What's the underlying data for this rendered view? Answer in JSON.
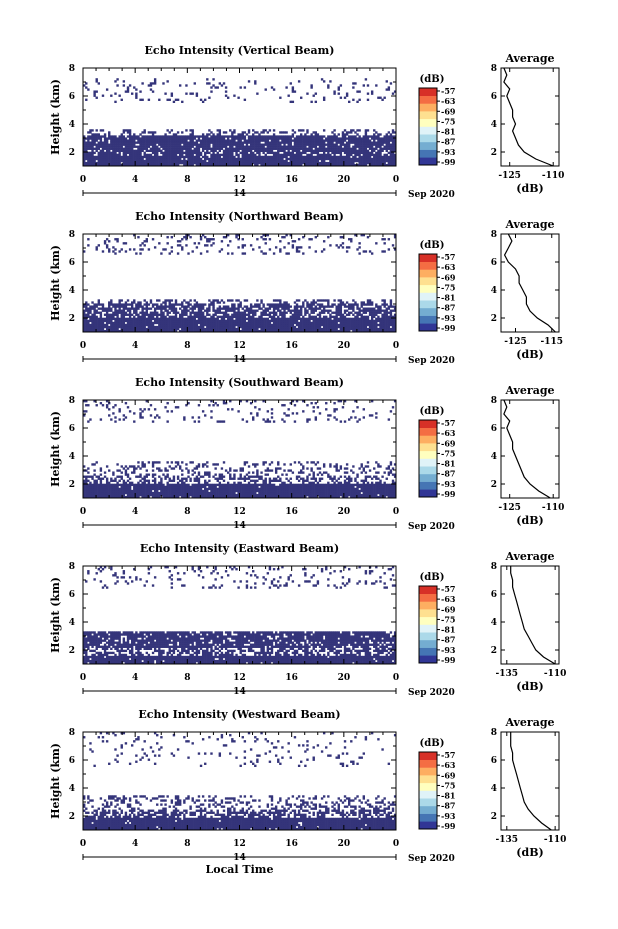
{
  "figure": {
    "x_axis_label": "Local Time",
    "date_label": "Sep 2020",
    "day_label": "14",
    "colorbar_unit": "(dB)",
    "colorbar_ticks": [
      "-57",
      "-63",
      "-69",
      "-75",
      "-81",
      "-87",
      "-93",
      "-99"
    ],
    "colormap": [
      "#313695",
      "#4575b4",
      "#74add1",
      "#abd9e9",
      "#e0f3f8",
      "#ffffbf",
      "#fee090",
      "#fdae61",
      "#f46d43",
      "#d73027"
    ],
    "echo_color": "#34347a",
    "avg_title": "Average",
    "avg_xlabel": "(dB)"
  },
  "chart_data": [
    {
      "type": "heatmap",
      "title": "Echo Intensity (Vertical Beam)",
      "ylabel": "Height (km)",
      "xlabel": "",
      "x_ticks": [
        "0",
        "4",
        "8",
        "12",
        "16",
        "20",
        "0"
      ],
      "y_ticks": [
        "2",
        "4",
        "6",
        "8"
      ],
      "xlim": [
        0,
        24
      ],
      "ylim": [
        1,
        8
      ],
      "clim": [
        -99,
        -57
      ],
      "layers": [
        {
          "y0": 1.0,
          "y1": 1.7,
          "density": 0.97
        },
        {
          "y0": 1.7,
          "y1": 2.1,
          "density": 0.75
        },
        {
          "y0": 2.1,
          "y1": 3.2,
          "density": 0.9
        },
        {
          "y0": 3.2,
          "y1": 3.6,
          "density": 0.3
        },
        {
          "y0": 5.5,
          "y1": 7.3,
          "density": 0.1
        }
      ],
      "profile": {
        "title": "Average",
        "xlabel": "(dB)",
        "x_ticks": [
          "-125",
          "-110"
        ],
        "xlim": [
          -128,
          -108
        ],
        "y_ticks": [
          "2",
          "4",
          "6",
          "8"
        ],
        "ylim": [
          1,
          8
        ],
        "height": [
          1.0,
          1.5,
          2.0,
          2.5,
          3.0,
          3.5,
          4.0,
          4.5,
          5.0,
          5.5,
          6.0,
          6.5,
          7.0,
          7.5,
          8.0
        ],
        "value": [
          -110,
          -116,
          -120,
          -122,
          -123,
          -124,
          -123,
          -124,
          -124,
          -125,
          -126,
          -125,
          -127,
          -126,
          -127
        ]
      }
    },
    {
      "type": "heatmap",
      "title": "Echo Intensity (Northward Beam)",
      "ylabel": "Height (km)",
      "xlabel": "",
      "x_ticks": [
        "0",
        "4",
        "8",
        "12",
        "16",
        "20",
        "0"
      ],
      "y_ticks": [
        "2",
        "4",
        "6",
        "8"
      ],
      "xlim": [
        0,
        24
      ],
      "ylim": [
        1,
        8
      ],
      "clim": [
        -99,
        -57
      ],
      "layers": [
        {
          "y0": 1.0,
          "y1": 2.0,
          "density": 0.97
        },
        {
          "y0": 2.0,
          "y1": 3.0,
          "density": 0.7
        },
        {
          "y0": 3.0,
          "y1": 3.4,
          "density": 0.35
        },
        {
          "y0": 6.6,
          "y1": 8.0,
          "density": 0.12
        }
      ],
      "profile": {
        "title": "Average",
        "xlabel": "(dB)",
        "x_ticks": [
          "-125",
          "-115"
        ],
        "xlim": [
          -129,
          -113
        ],
        "y_ticks": [
          "2",
          "4",
          "6",
          "8"
        ],
        "ylim": [
          1,
          8
        ],
        "height": [
          1.0,
          1.5,
          2.0,
          2.5,
          3.0,
          3.5,
          4.0,
          4.5,
          5.0,
          5.5,
          6.0,
          6.5,
          7.0,
          7.5,
          8.0
        ],
        "value": [
          -114,
          -116,
          -119,
          -121,
          -122,
          -122,
          -123,
          -124,
          -124,
          -125,
          -127,
          -128,
          -127,
          -126,
          -127
        ]
      }
    },
    {
      "type": "heatmap",
      "title": "Echo Intensity (Southward Beam)",
      "ylabel": "Height (km)",
      "xlabel": "",
      "x_ticks": [
        "0",
        "4",
        "8",
        "12",
        "16",
        "20",
        "0"
      ],
      "y_ticks": [
        "2",
        "4",
        "6",
        "8"
      ],
      "xlim": [
        0,
        24
      ],
      "ylim": [
        1,
        8
      ],
      "clim": [
        -99,
        -57
      ],
      "layers": [
        {
          "y0": 1.0,
          "y1": 2.0,
          "density": 0.97
        },
        {
          "y0": 2.0,
          "y1": 2.6,
          "density": 0.45
        },
        {
          "y0": 2.6,
          "y1": 3.6,
          "density": 0.25
        },
        {
          "y0": 6.4,
          "y1": 8.0,
          "density": 0.1
        }
      ],
      "profile": {
        "title": "Average",
        "xlabel": "(dB)",
        "x_ticks": [
          "-125",
          "-110"
        ],
        "xlim": [
          -128,
          -108
        ],
        "y_ticks": [
          "2",
          "4",
          "6",
          "8"
        ],
        "ylim": [
          1,
          8
        ],
        "height": [
          1.0,
          1.5,
          2.0,
          2.5,
          3.0,
          3.5,
          4.0,
          4.5,
          5.0,
          5.5,
          6.0,
          6.5,
          7.0,
          7.5,
          8.0
        ],
        "value": [
          -111,
          -115,
          -118,
          -120,
          -121,
          -122,
          -123,
          -124,
          -124,
          -125,
          -126,
          -125,
          -127,
          -126,
          -127
        ]
      }
    },
    {
      "type": "heatmap",
      "title": "Echo Intensity (Eastward Beam)",
      "ylabel": "Height (km)",
      "xlabel": "",
      "x_ticks": [
        "0",
        "4",
        "8",
        "12",
        "16",
        "20",
        "0"
      ],
      "y_ticks": [
        "2",
        "4",
        "6",
        "8"
      ],
      "xlim": [
        0,
        24
      ],
      "ylim": [
        1,
        8
      ],
      "clim": [
        -99,
        -57
      ],
      "layers": [
        {
          "y0": 1.0,
          "y1": 1.6,
          "density": 0.97
        },
        {
          "y0": 1.6,
          "y1": 2.1,
          "density": 0.6
        },
        {
          "y0": 2.1,
          "y1": 3.3,
          "density": 0.85
        },
        {
          "y0": 6.4,
          "y1": 8.0,
          "density": 0.12
        }
      ],
      "profile": {
        "title": "Average",
        "xlabel": "(dB)",
        "x_ticks": [
          "-135",
          "-110"
        ],
        "xlim": [
          -138,
          -108
        ],
        "y_ticks": [
          "2",
          "4",
          "6",
          "8"
        ],
        "ylim": [
          1,
          8
        ],
        "height": [
          1.0,
          1.5,
          2.0,
          2.5,
          3.0,
          3.5,
          4.0,
          4.5,
          5.0,
          5.5,
          6.0,
          6.5,
          7.0,
          7.5,
          8.0
        ],
        "value": [
          -110,
          -116,
          -120,
          -122,
          -124,
          -126,
          -127,
          -128,
          -129,
          -130,
          -131,
          -132,
          -132,
          -133,
          -133
        ]
      }
    },
    {
      "type": "heatmap",
      "title": "Echo Intensity (Westward Beam)",
      "ylabel": "Height (km)",
      "xlabel": "Local Time",
      "x_ticks": [
        "0",
        "4",
        "8",
        "12",
        "16",
        "20",
        "0"
      ],
      "y_ticks": [
        "2",
        "4",
        "6",
        "8"
      ],
      "xlim": [
        0,
        24
      ],
      "ylim": [
        1,
        8
      ],
      "clim": [
        -99,
        -57
      ],
      "layers": [
        {
          "y0": 1.0,
          "y1": 1.9,
          "density": 0.97
        },
        {
          "y0": 1.9,
          "y1": 2.5,
          "density": 0.55
        },
        {
          "y0": 2.5,
          "y1": 3.5,
          "density": 0.3
        },
        {
          "y0": 5.5,
          "y1": 8.0,
          "density": 0.07
        }
      ],
      "profile": {
        "title": "Average",
        "xlabel": "(dB)",
        "x_ticks": [
          "-135",
          "-110"
        ],
        "xlim": [
          -138,
          -108
        ],
        "y_ticks": [
          "2",
          "4",
          "6",
          "8"
        ],
        "ylim": [
          1,
          8
        ],
        "height": [
          1.0,
          1.5,
          2.0,
          2.5,
          3.0,
          3.5,
          4.0,
          4.5,
          5.0,
          5.5,
          6.0,
          6.5,
          7.0,
          7.5,
          8.0
        ],
        "value": [
          -112,
          -117,
          -121,
          -124,
          -126,
          -127,
          -128,
          -129,
          -130,
          -131,
          -132,
          -132,
          -133,
          -133,
          -133
        ]
      }
    }
  ]
}
